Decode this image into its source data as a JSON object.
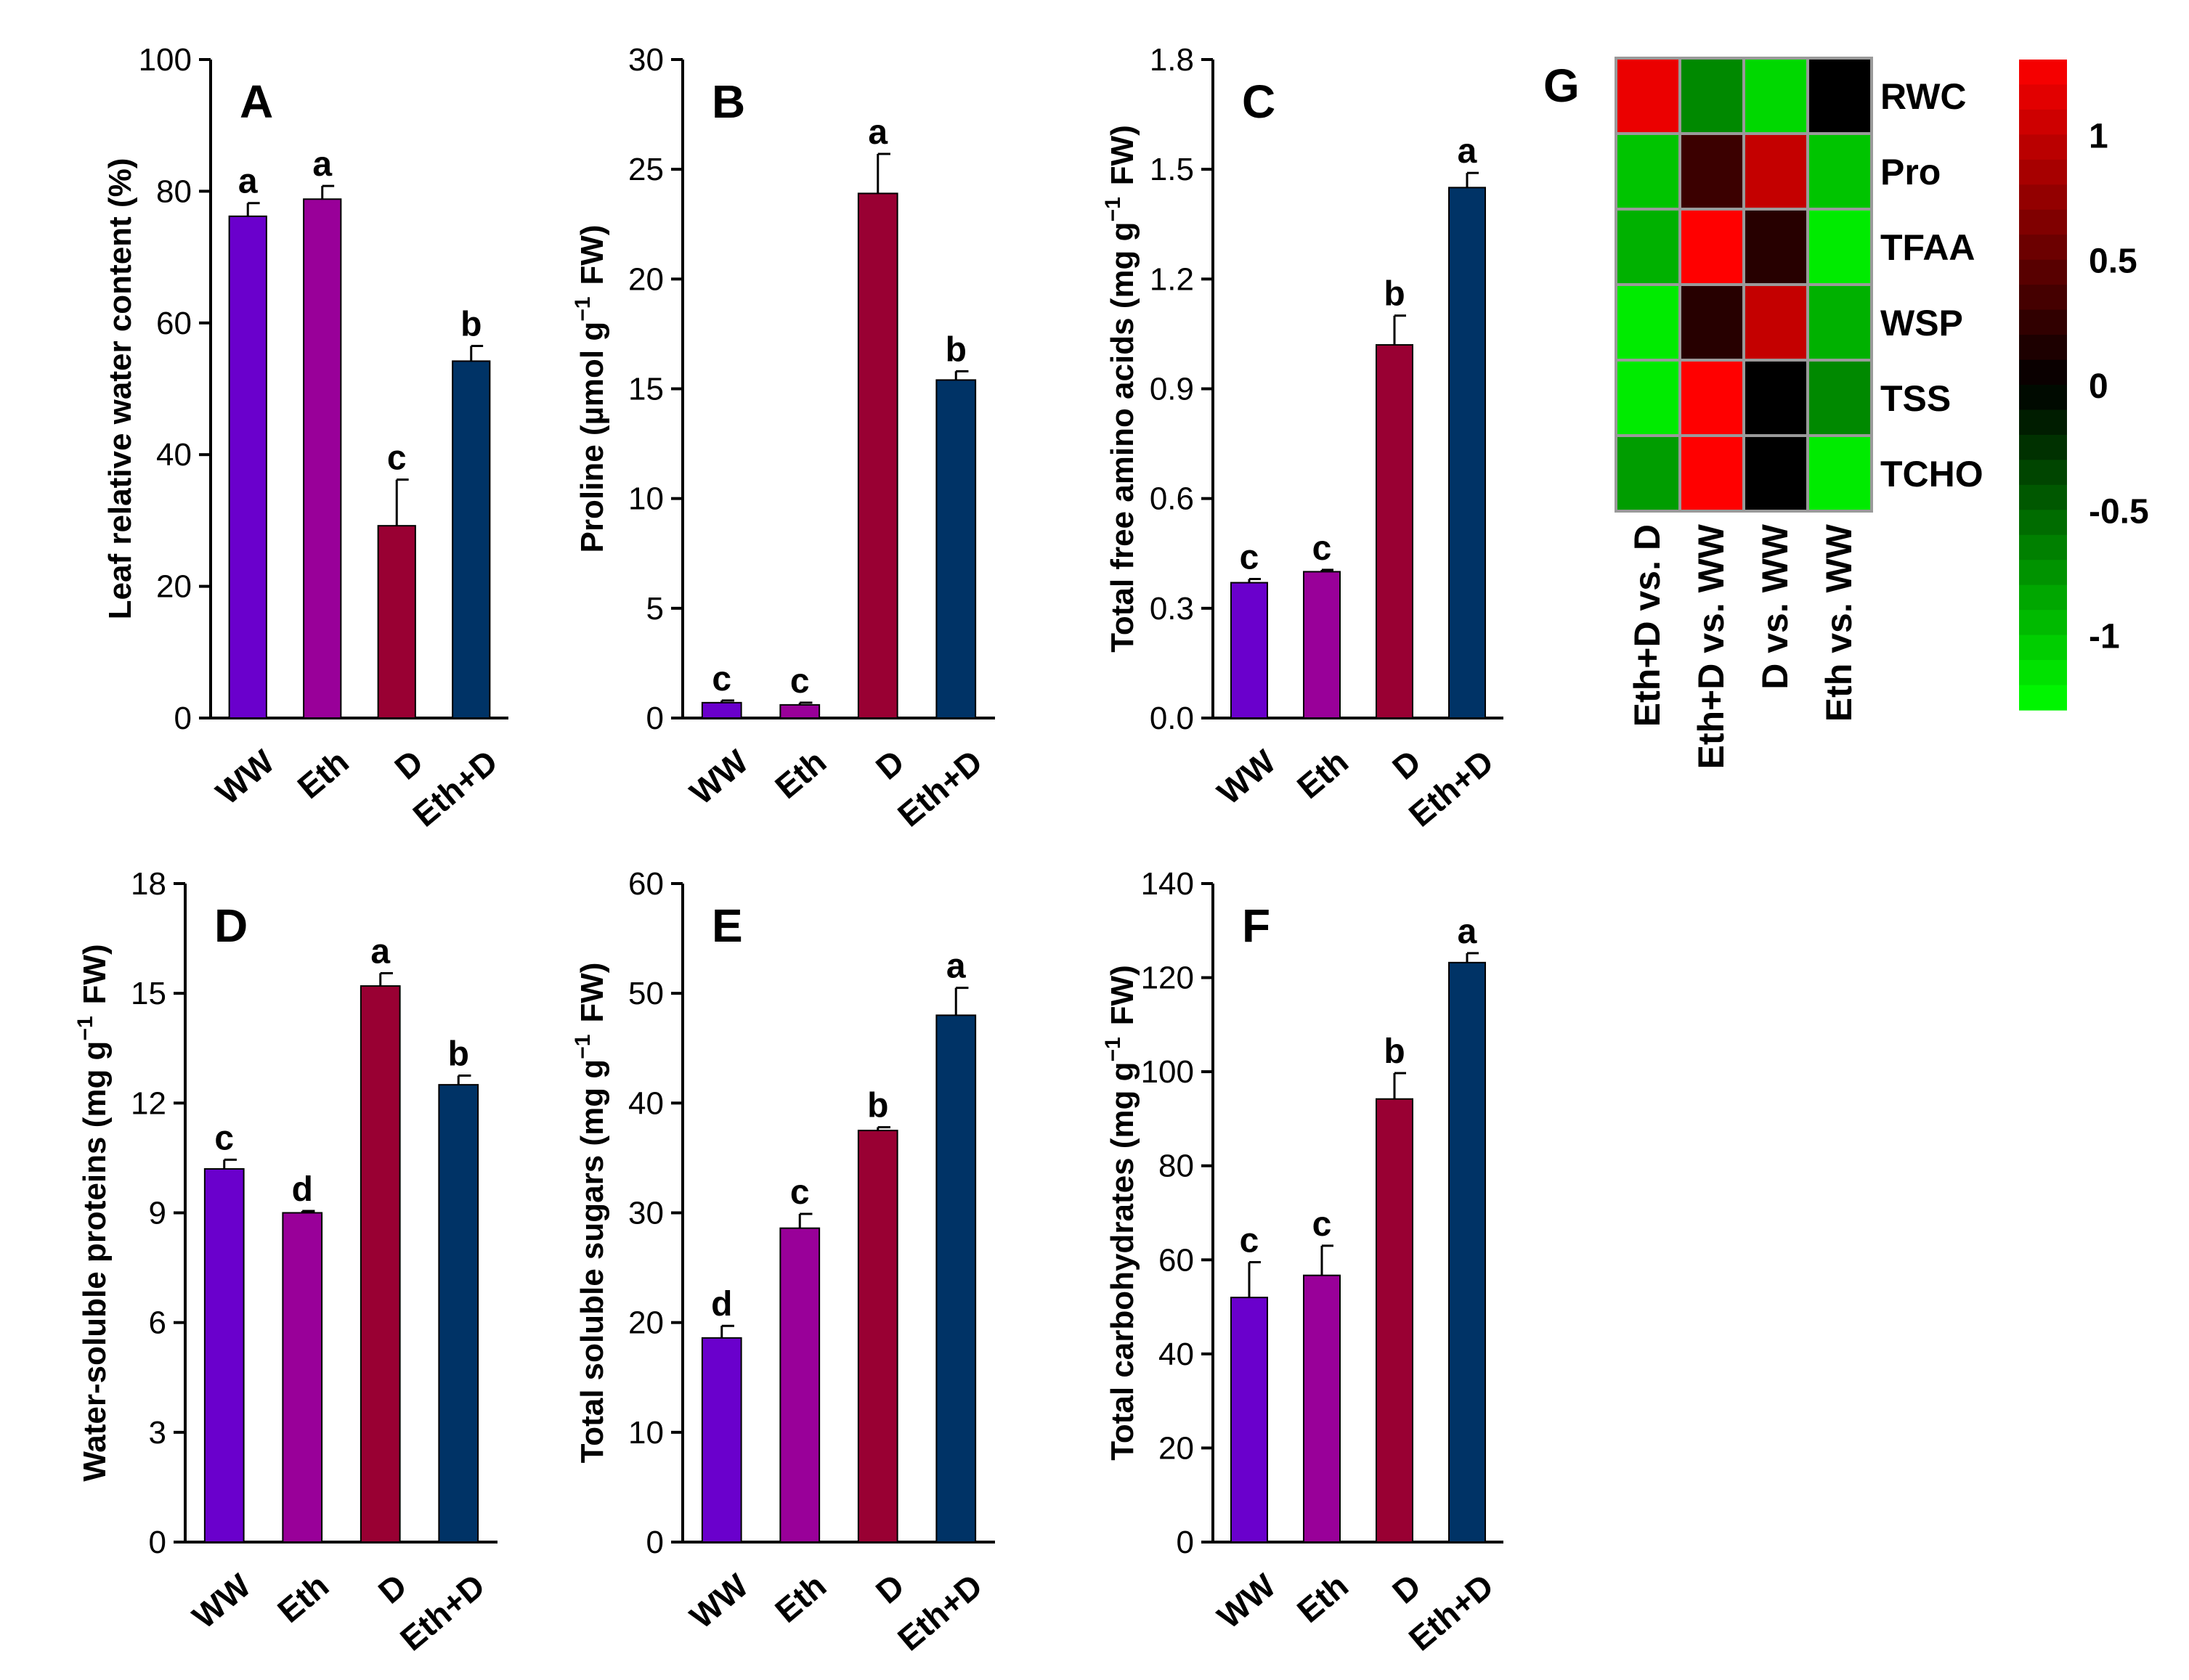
{
  "colors": {
    "WW": "#6a00cc",
    "Eth": "#990099",
    "D": "#990033",
    "Eth+D": "#003366",
    "heat_pos": "#ff0000",
    "heat_mid": "#000000",
    "heat_neg": "#00ff00"
  },
  "chart_data": [
    {
      "type": "bar",
      "panel": "A",
      "categories": [
        "WW",
        "Eth",
        "D",
        "Eth+D"
      ],
      "values": [
        76.2,
        78.8,
        29.2,
        54.2
      ],
      "errors": [
        2.0,
        2.0,
        7.0,
        2.3
      ],
      "letters": [
        "a",
        "a",
        "c",
        "b"
      ],
      "ylabel": "Leaf relative water content (%)",
      "ylim": [
        0,
        100
      ],
      "yticks": [
        0,
        20,
        40,
        60,
        80,
        100
      ],
      "ytick_labels": [
        "0",
        "20",
        "40",
        "60",
        "80",
        "100"
      ]
    },
    {
      "type": "bar",
      "panel": "B",
      "categories": [
        "WW",
        "Eth",
        "D",
        "Eth+D"
      ],
      "values": [
        0.7,
        0.6,
        23.9,
        15.4
      ],
      "errors": [
        0.1,
        0.1,
        1.8,
        0.4
      ],
      "letters": [
        "c",
        "c",
        "a",
        "b"
      ],
      "ylabel": "Proline (µmol g⁻¹ FW)",
      "ylim": [
        0,
        30
      ],
      "yticks": [
        0,
        5,
        10,
        15,
        20,
        25,
        30
      ],
      "ytick_labels": [
        "0",
        "5",
        "10",
        "15",
        "20",
        "25",
        "30"
      ]
    },
    {
      "type": "bar",
      "panel": "C",
      "categories": [
        "WW",
        "Eth",
        "D",
        "Eth+D"
      ],
      "values": [
        0.37,
        0.4,
        1.02,
        1.45
      ],
      "errors": [
        0.01,
        0.005,
        0.08,
        0.04
      ],
      "letters": [
        "c",
        "c",
        "b",
        "a"
      ],
      "ylabel": "Total free amino acids (mg g⁻¹ FW)",
      "ylim": [
        0,
        1.8
      ],
      "yticks": [
        0,
        0.3,
        0.6,
        0.9,
        1.2,
        1.5,
        1.8
      ],
      "ytick_labels": [
        "0.0",
        "0.3",
        "0.6",
        "0.9",
        "1.2",
        "1.5",
        "1.8"
      ]
    },
    {
      "type": "bar",
      "panel": "D",
      "categories": [
        "WW",
        "Eth",
        "D",
        "Eth+D"
      ],
      "values": [
        10.2,
        9.0,
        15.2,
        12.5
      ],
      "errors": [
        0.25,
        0.05,
        0.35,
        0.25
      ],
      "letters": [
        "c",
        "d",
        "a",
        "b"
      ],
      "ylabel": "Water-soluble proteins (mg g⁻¹ FW)",
      "ylim": [
        0,
        18
      ],
      "yticks": [
        0,
        3,
        6,
        9,
        12,
        15,
        18
      ],
      "ytick_labels": [
        "0",
        "3",
        "6",
        "9",
        "12",
        "15",
        "18"
      ]
    },
    {
      "type": "bar",
      "panel": "E",
      "categories": [
        "WW",
        "Eth",
        "D",
        "Eth+D"
      ],
      "values": [
        18.6,
        28.6,
        37.5,
        48.0
      ],
      "errors": [
        1.1,
        1.3,
        0.3,
        2.5
      ],
      "letters": [
        "d",
        "c",
        "b",
        "a"
      ],
      "ylabel": "Total soluble sugars (mg g⁻¹ FW)",
      "ylim": [
        0,
        60
      ],
      "yticks": [
        0,
        10,
        20,
        30,
        40,
        50,
        60
      ],
      "ytick_labels": [
        "0",
        "10",
        "20",
        "30",
        "40",
        "50",
        "60"
      ]
    },
    {
      "type": "bar",
      "panel": "F",
      "categories": [
        "WW",
        "Eth",
        "D",
        "Eth+D"
      ],
      "values": [
        52.0,
        56.7,
        94.2,
        123.2
      ],
      "errors": [
        7.5,
        6.3,
        5.5,
        2.0
      ],
      "letters": [
        "c",
        "c",
        "b",
        "a"
      ],
      "ylabel": "Total carbohydrates (mg g⁻¹ FW)",
      "ylim": [
        0,
        140
      ],
      "yticks": [
        0,
        20,
        40,
        60,
        80,
        100,
        120,
        140
      ],
      "ytick_labels": [
        "0",
        "20",
        "40",
        "60",
        "80",
        "100",
        "120",
        "140"
      ]
    },
    {
      "type": "heatmap",
      "panel": "G",
      "rows": [
        "RWC",
        "Pro",
        "TFAA",
        "WSP",
        "TSS",
        "TCHO"
      ],
      "columns": [
        "Eth+D vs. D",
        "Eth+D vs. WW",
        "D vs. WW",
        "Eth vs. WW"
      ],
      "values": [
        [
          1.2,
          -0.7,
          -1.1,
          0.0
        ],
        [
          -1.0,
          0.3,
          1.0,
          -1.0
        ],
        [
          -0.9,
          1.3,
          0.2,
          -1.2
        ],
        [
          -1.2,
          0.2,
          1.0,
          -0.9
        ],
        [
          -1.2,
          1.3,
          0.0,
          -0.7
        ],
        [
          -0.8,
          1.3,
          0.0,
          -1.2
        ]
      ],
      "colorbar_range": [
        -1.3,
        1.3
      ],
      "colorbar_ticks": [
        1,
        0.5,
        0,
        -0.5,
        -1
      ],
      "colorbar_tick_labels": [
        "1",
        "0.5",
        "0",
        "-0.5",
        "-1"
      ]
    }
  ]
}
